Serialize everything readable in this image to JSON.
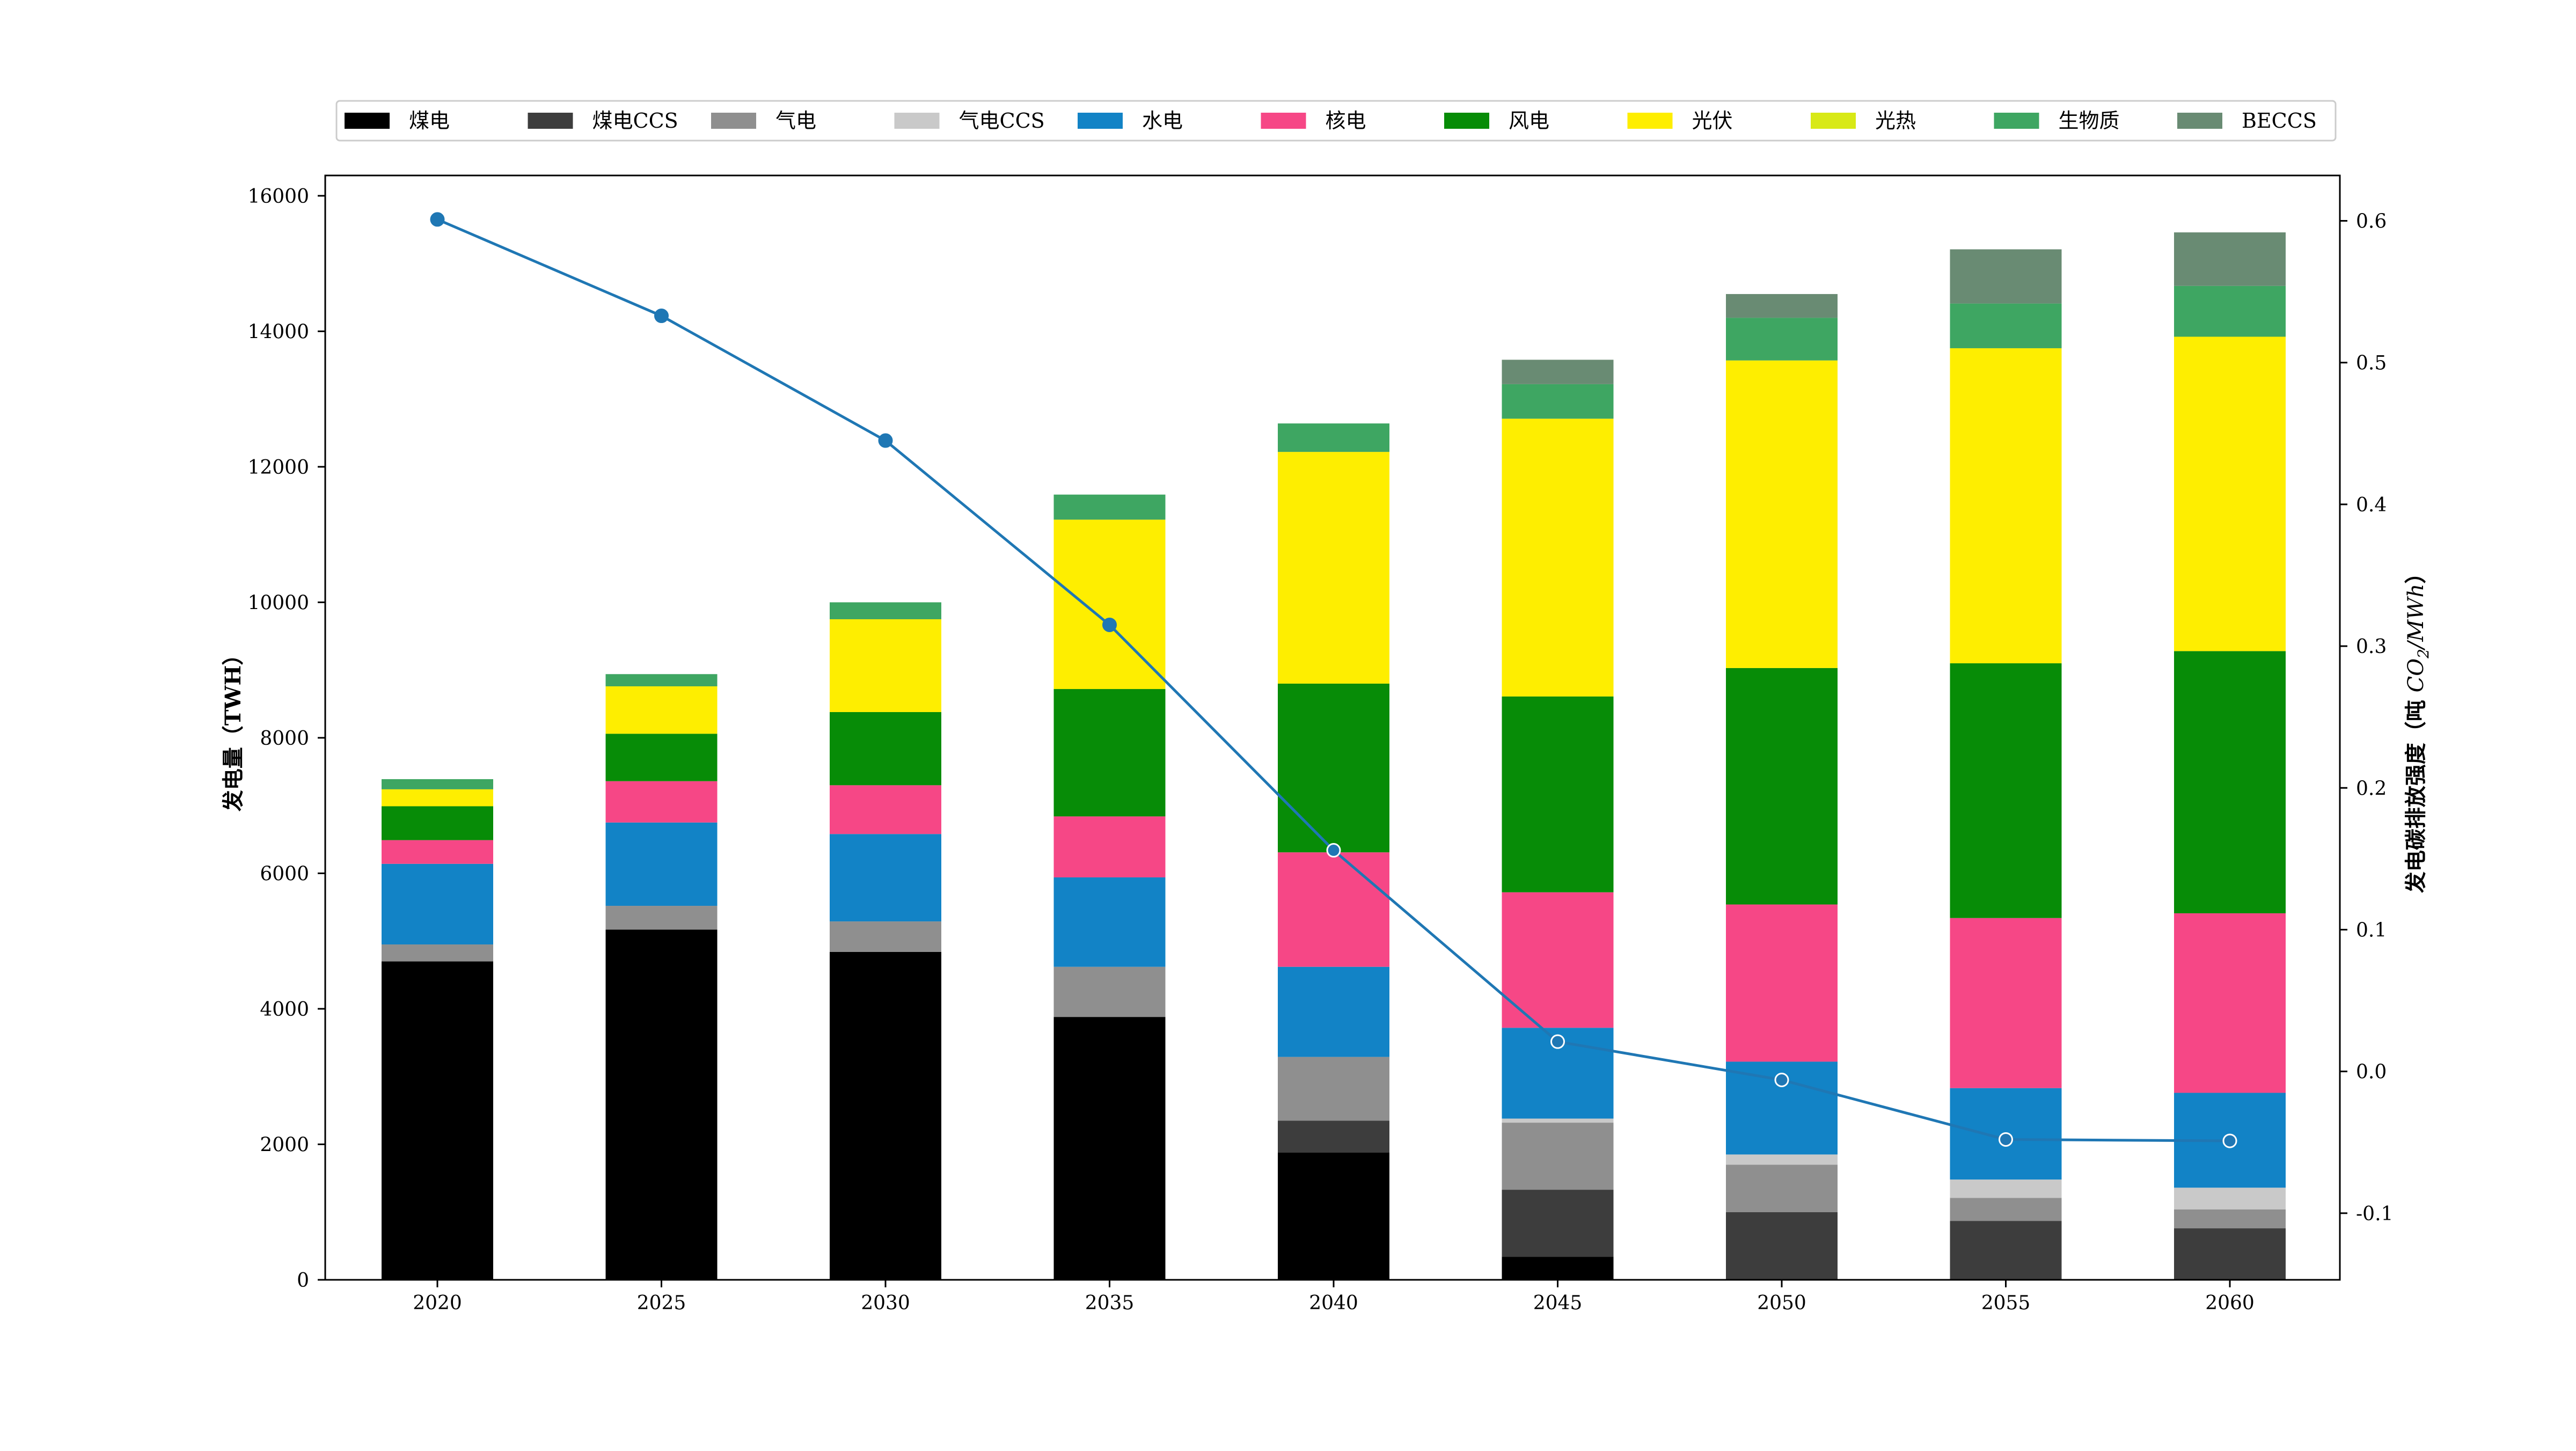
{
  "chart_data": {
    "type": "bar",
    "stacked": true,
    "categories": [
      "2020",
      "2025",
      "2030",
      "2035",
      "2040",
      "2045",
      "2050",
      "2055",
      "2060"
    ],
    "ylabel": "发电量（TWH）",
    "ylim": [
      0,
      16300
    ],
    "yticks": [
      0,
      2000,
      4000,
      6000,
      8000,
      10000,
      12000,
      14000,
      16000
    ],
    "y2label": "发电碳排放强度（吨 CO₂/MWh）",
    "y2label_parts": {
      "prefix": "发电碳排放强度（吨 ",
      "italic": "CO",
      "sub": "2",
      "suffix_italic": "/MWh",
      "close": "）"
    },
    "y2lim": [
      -0.147,
      0.632
    ],
    "y2ticks": [
      -0.1,
      0.0,
      0.1,
      0.2,
      0.3,
      0.4,
      0.5,
      0.6
    ],
    "y2ticklabels": [
      "-0.1",
      "0.0",
      "0.1",
      "0.2",
      "0.3",
      "0.4",
      "0.5",
      "0.6"
    ],
    "grid": false,
    "legend_position": "top",
    "series": [
      {
        "name": "煤电",
        "color": "#000000",
        "values": [
          4700,
          5170,
          4840,
          3880,
          1880,
          340,
          0,
          0,
          0
        ]
      },
      {
        "name": "煤电CCS",
        "color": "#3d3d3d",
        "values": [
          0,
          0,
          0,
          0,
          470,
          990,
          1000,
          870,
          760
        ]
      },
      {
        "name": "气电",
        "color": "#8f8f8f",
        "values": [
          250,
          350,
          450,
          740,
          940,
          990,
          700,
          340,
          280
        ]
      },
      {
        "name": "气电CCS",
        "color": "#c9c9c9",
        "values": [
          0,
          0,
          0,
          0,
          0,
          60,
          150,
          270,
          320
        ]
      },
      {
        "name": "水电",
        "color": "#1283c6",
        "values": [
          1190,
          1230,
          1290,
          1320,
          1330,
          1340,
          1370,
          1350,
          1400
        ]
      },
      {
        "name": "核电",
        "color": "#f64786",
        "values": [
          350,
          610,
          720,
          900,
          1690,
          2000,
          2320,
          2510,
          2650
        ]
      },
      {
        "name": "风电",
        "color": "#078c07",
        "values": [
          500,
          700,
          1080,
          1880,
          2490,
          2890,
          3490,
          3760,
          3870
        ]
      },
      {
        "name": "光伏",
        "color": "#feee00",
        "values": [
          250,
          700,
          1370,
          2500,
          3420,
          4100,
          4540,
          4650,
          4640
        ]
      },
      {
        "name": "光热",
        "color": "#d8e916",
        "values": [
          0,
          0,
          0,
          0,
          0,
          0,
          0,
          0,
          0
        ]
      },
      {
        "name": "生物质",
        "color": "#3ea662",
        "values": [
          150,
          180,
          250,
          370,
          420,
          510,
          630,
          660,
          750
        ]
      },
      {
        "name": "BECCS",
        "color": "#698b73",
        "values": [
          0,
          0,
          0,
          0,
          0,
          360,
          350,
          800,
          790
        ]
      }
    ],
    "line": {
      "name": "发电碳排放强度",
      "axis": "y2",
      "color": "#1f77b4",
      "values": [
        0.601,
        0.533,
        0.445,
        0.315,
        0.156,
        0.021,
        -0.006,
        -0.048,
        -0.049
      ],
      "marker_fill": [
        "#1f77b4",
        "#1f77b4",
        "#1f77b4",
        "#1f77b4",
        "#1f77b4",
        "#1f77b4",
        "#1f77b4",
        "#1f77b4",
        "#1f77b4"
      ],
      "marker_stroke": [
        "#1f77b4",
        "#1f77b4",
        "#1f77b4",
        "#1f77b4",
        "#ffffff",
        "#ffffff",
        "#ffffff",
        "#ffffff",
        "#ffffff"
      ]
    }
  }
}
